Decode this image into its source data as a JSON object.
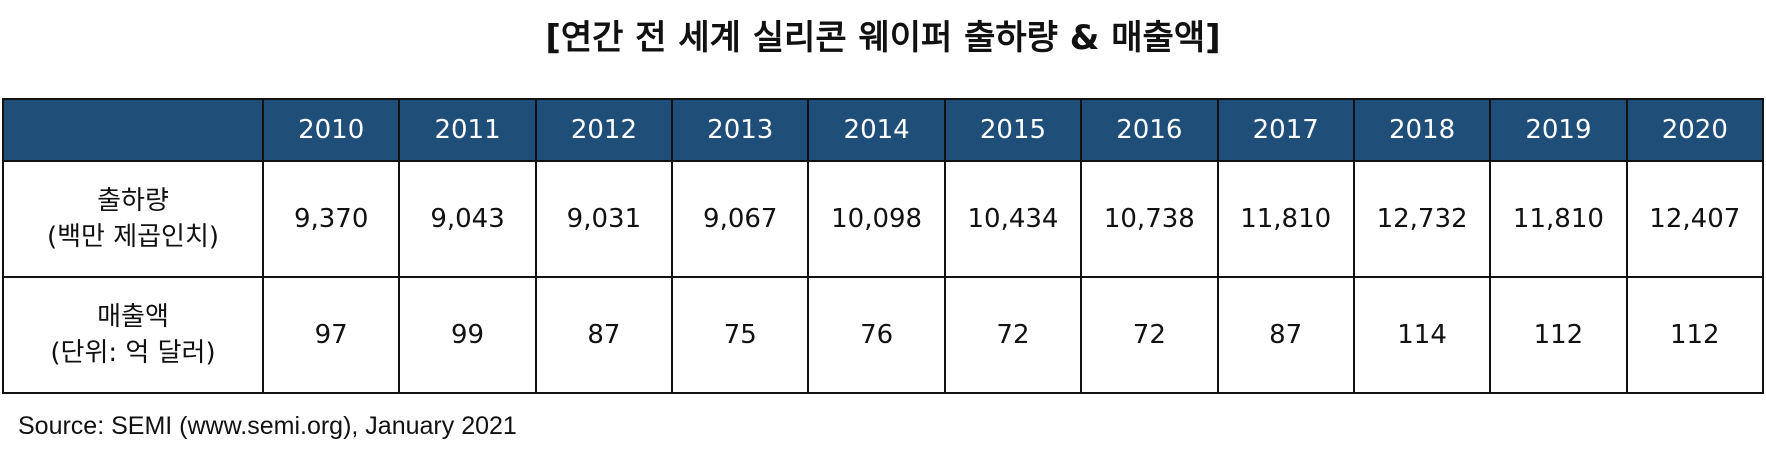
{
  "title": "[연간 전 세계 실리콘 웨이퍼 출하량 & 매출액]",
  "table": {
    "header": [
      "2010",
      "2011",
      "2012",
      "2013",
      "2014",
      "2015",
      "2016",
      "2017",
      "2018",
      "2019",
      "2020"
    ],
    "rows": [
      {
        "label": [
          "출하량",
          "(백만 제곱인치)"
        ],
        "values": [
          "9,370",
          "9,043",
          "9,031",
          "9,067",
          "10,098",
          "10,434",
          "10,738",
          "11,810",
          "12,732",
          "11,810",
          "12,407"
        ]
      },
      {
        "label": [
          "매출액",
          "(단위: 억 달러)"
        ],
        "values": [
          "97",
          "99",
          "87",
          "75",
          "76",
          "72",
          "72",
          "87",
          "114",
          "112",
          "112"
        ]
      }
    ]
  },
  "source": "Source: SEMI (www.semi.org), January 2021"
}
